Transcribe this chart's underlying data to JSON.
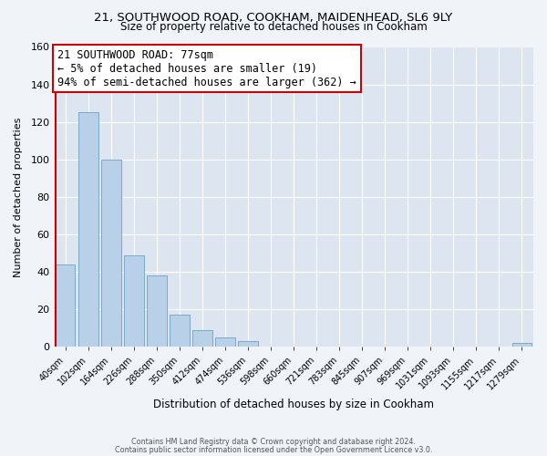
{
  "title_line1": "21, SOUTHWOOD ROAD, COOKHAM, MAIDENHEAD, SL6 9LY",
  "title_line2": "Size of property relative to detached houses in Cookham",
  "xlabel": "Distribution of detached houses by size in Cookham",
  "ylabel": "Number of detached properties",
  "bar_labels": [
    "40sqm",
    "102sqm",
    "164sqm",
    "226sqm",
    "288sqm",
    "350sqm",
    "412sqm",
    "474sqm",
    "536sqm",
    "598sqm",
    "660sqm",
    "721sqm",
    "783sqm",
    "845sqm",
    "907sqm",
    "969sqm",
    "1031sqm",
    "1093sqm",
    "1155sqm",
    "1217sqm",
    "1279sqm"
  ],
  "bar_values": [
    44,
    125,
    100,
    49,
    38,
    17,
    9,
    5,
    3,
    0,
    0,
    0,
    0,
    0,
    0,
    0,
    0,
    0,
    0,
    0,
    2
  ],
  "bar_color": "#b8d0e8",
  "bar_edge_color": "#7aaac8",
  "red_line_color": "#cc0000",
  "annotation_title": "21 SOUTHWOOD ROAD: 77sqm",
  "annotation_line1": "← 5% of detached houses are smaller (19)",
  "annotation_line2": "94% of semi-detached houses are larger (362) →",
  "annotation_box_facecolor": "#ffffff",
  "annotation_box_edgecolor": "#cc0000",
  "ylim": [
    0,
    160
  ],
  "yticks": [
    0,
    20,
    40,
    60,
    80,
    100,
    120,
    140,
    160
  ],
  "footer_line1": "Contains HM Land Registry data © Crown copyright and database right 2024.",
  "footer_line2": "Contains public sector information licensed under the Open Government Licence v3.0.",
  "fig_bg_color": "#f0f4f8",
  "plot_bg_color": "#dde6f0",
  "grid_color": "#ffffff",
  "title_fontsize": 9.5,
  "subtitle_fontsize": 8.5,
  "ann_fontsize": 8.5,
  "ylabel_fontsize": 8,
  "xlabel_fontsize": 8.5
}
